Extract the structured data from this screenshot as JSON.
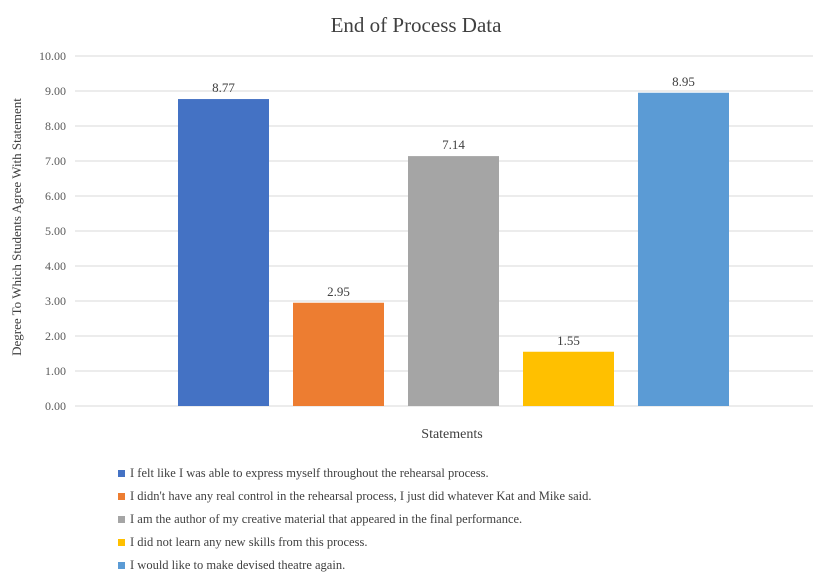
{
  "chart_data": {
    "type": "bar",
    "title": "End of Process Data",
    "xlabel": "Statements",
    "ylabel": "Degree To Which Students Agree With Statement",
    "ylim": [
      0,
      10
    ],
    "yticks": [
      "0.00",
      "1.00",
      "2.00",
      "3.00",
      "4.00",
      "5.00",
      "6.00",
      "7.00",
      "8.00",
      "9.00",
      "10.00"
    ],
    "grid": true,
    "legend_position": "bottom",
    "series": [
      {
        "name": "I felt like I was able to express myself throughout the rehearsal process.",
        "value": 8.77,
        "label": "8.77",
        "color": "#4472C4"
      },
      {
        "name": "I didn't have any real control in the rehearsal process, I just did whatever Kat and Mike said.",
        "value": 2.95,
        "label": "2.95",
        "color": "#ED7D31"
      },
      {
        "name": "I am the author of my creative material that appeared in the final performance.",
        "value": 7.14,
        "label": "7.14",
        "color": "#A5A5A5"
      },
      {
        "name": "I did not learn any new skills from this process.",
        "value": 1.55,
        "label": "1.55",
        "color": "#FFC000"
      },
      {
        "name": "I would like to make devised theatre again.",
        "value": 8.95,
        "label": "8.95",
        "color": "#5B9BD5"
      }
    ]
  }
}
